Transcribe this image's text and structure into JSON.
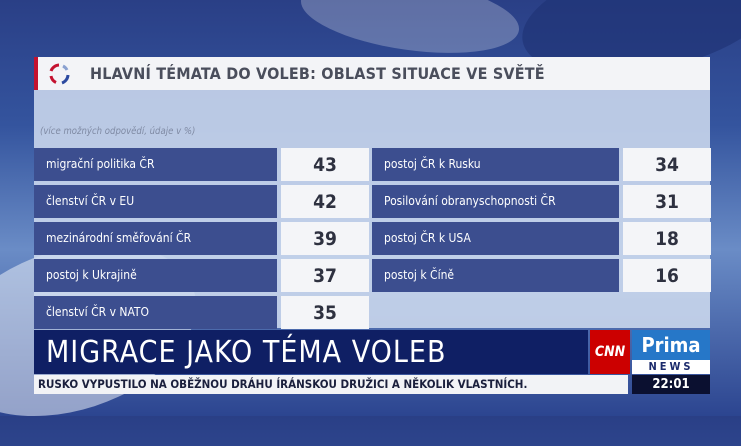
{
  "title": "HLAVNÍ TÉMATA DO VOLEB: OBLAST SITUACE VE SVĚTĚ",
  "note": "(více možných odpovědí, údaje v %)",
  "left_rows": [
    {
      "label": "migrační politika ČR",
      "value": "43"
    },
    {
      "label": "členství ČR v EU",
      "value": "42"
    },
    {
      "label": "mezinárodní směřování ČR",
      "value": "39"
    },
    {
      "label": "postoj k Ukrajině",
      "value": "37"
    },
    {
      "label": "členství ČR v NATO",
      "value": "35"
    }
  ],
  "right_rows": [
    {
      "label": "postoj ČR k Rusku",
      "value": "34"
    },
    {
      "label": "Posilování obranyschopnosti ČR",
      "value": "31"
    },
    {
      "label": "postoj ČR k USA",
      "value": "18"
    },
    {
      "label": "postoj k Číně",
      "value": "16"
    }
  ],
  "headline": "MIGRACE JAKO TÉMA VOLEB",
  "ticker": "RUSKO VYPUSTILO NA OBĚŽNOU DRÁHU ÍRÁNSKOU DRUŽICI A NĚKOLIK VLASTNÍCH.",
  "clock": "22:01",
  "brand": {
    "cnn": "CNN",
    "prima": "Prima",
    "news": "NEWS"
  },
  "colors": {
    "label_bg": "#3c4e8f",
    "headline_bg": "#0f1f64",
    "cnn_red": "#cc0000",
    "prima_blue": "#2677c8"
  }
}
